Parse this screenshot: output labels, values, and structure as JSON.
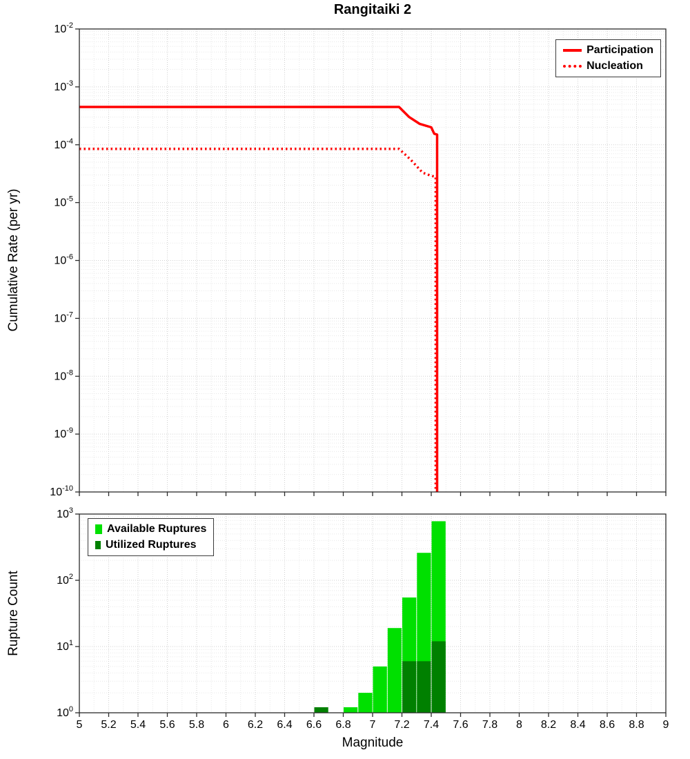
{
  "title": "Rangitaiki 2",
  "colors": {
    "participation": "#ff0000",
    "nucleation": "#ff0000",
    "available": "#00e000",
    "utilized": "#008000",
    "grid_major": "#cfcfcf",
    "grid_minor": "#e7e7e7",
    "frame": "#2a2a2a"
  },
  "chart_data": [
    {
      "type": "line",
      "title": "Rangitaiki 2",
      "xlabel": "Magnitude",
      "ylabel": "Cumulative Rate (per yr)",
      "xlim": [
        5,
        9
      ],
      "x_tick_labels": [
        "5",
        "5.2",
        "5.4",
        "5.6",
        "5.8",
        "6",
        "6.2",
        "6.4",
        "6.6",
        "6.8",
        "7",
        "7.2",
        "7.4",
        "7.6",
        "7.8",
        "8",
        "8.2",
        "8.4",
        "8.6",
        "8.8",
        "9"
      ],
      "x_tick_labels_shown": false,
      "y_scale": "log",
      "ylim": [
        1e-10,
        0.01
      ],
      "y_tick_exponents": [
        -2,
        -3,
        -4,
        -5,
        -6,
        -7,
        -8,
        -9,
        -10
      ],
      "grid": true,
      "legend": {
        "position": "top-right",
        "entries": [
          {
            "label": "Participation",
            "color": "#ff0000",
            "line": "solid"
          },
          {
            "label": "Nucleation",
            "color": "#ff0000",
            "line": "dotted"
          }
        ]
      },
      "series": [
        {
          "name": "Participation",
          "color": "#ff0000",
          "style": "solid",
          "x": [
            5.0,
            7.18,
            7.25,
            7.32,
            7.4,
            7.42,
            7.44,
            7.44
          ],
          "y": [
            0.00045,
            0.00045,
            0.0003,
            0.00023,
            0.0002,
            0.000155,
            0.00015,
            1e-10
          ]
        },
        {
          "name": "Nucleation",
          "color": "#ff0000",
          "style": "dotted",
          "x": [
            5.0,
            7.18,
            7.26,
            7.34,
            7.4,
            7.43,
            7.43
          ],
          "y": [
            8.5e-05,
            8.5e-05,
            5.5e-05,
            3.3e-05,
            2.9e-05,
            2.8e-05,
            1e-10
          ]
        }
      ]
    },
    {
      "type": "bar",
      "title": "",
      "xlabel": "Magnitude",
      "ylabel": "Rupture Count",
      "xlim": [
        5,
        9
      ],
      "x_tick_labels": [
        "5",
        "5.2",
        "5.4",
        "5.6",
        "5.8",
        "6",
        "6.2",
        "6.4",
        "6.6",
        "6.8",
        "7",
        "7.2",
        "7.4",
        "7.6",
        "7.8",
        "8",
        "8.2",
        "8.4",
        "8.6",
        "8.8",
        "9"
      ],
      "x_tick_labels_shown": true,
      "y_scale": "log",
      "ylim": [
        1,
        1000
      ],
      "y_tick_exponents": [
        3,
        2,
        1,
        0
      ],
      "bar_width": 0.1,
      "grid": true,
      "legend": {
        "position": "top-left",
        "entries": [
          {
            "label": "Available Ruptures",
            "color": "#00e000",
            "swatch": "square"
          },
          {
            "label": "Utilized Ruptures",
            "color": "#008000",
            "swatch": "square"
          }
        ]
      },
      "series": [
        {
          "name": "Available Ruptures",
          "color": "#00e000",
          "centers": [
            6.85,
            6.95,
            7.05,
            7.15,
            7.25,
            7.35,
            7.45
          ],
          "values": [
            1,
            2,
            5,
            19,
            55,
            260,
            780
          ]
        },
        {
          "name": "Utilized Ruptures",
          "color": "#008000",
          "centers": [
            6.65,
            7.25,
            7.35,
            7.45
          ],
          "values": [
            1,
            6,
            6,
            12
          ]
        }
      ]
    }
  ]
}
